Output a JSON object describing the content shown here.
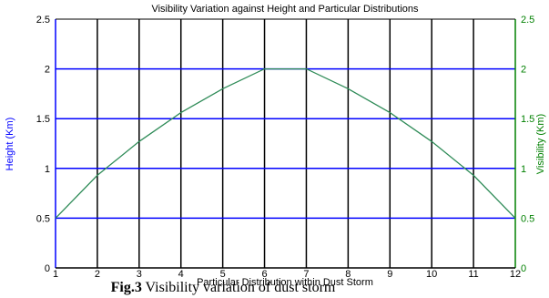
{
  "chart_data": {
    "type": "line",
    "title": "Visibility Variation against Height and Particular Distributions",
    "xlabel": "Particular Distribution within Dust Storm",
    "ylabel_left": "Height (Km)",
    "ylabel_right": "Visibility (Km)",
    "xlim": [
      1,
      12
    ],
    "ylim": [
      0,
      2.5
    ],
    "x_ticks": [
      "1",
      "2",
      "3",
      "4",
      "5",
      "6",
      "7",
      "8",
      "9",
      "10",
      "11",
      "12"
    ],
    "y_ticks": [
      "0",
      "0.5",
      "1",
      "1.5",
      "2",
      "2.5"
    ],
    "grid": true,
    "series": [
      {
        "x": [
          1,
          2,
          3,
          4,
          5,
          6,
          7,
          8,
          9,
          10,
          11,
          12
        ],
        "values": [
          0.5,
          0.93,
          1.27,
          1.56,
          1.8,
          2.0,
          2.0,
          1.8,
          1.56,
          1.27,
          0.93,
          0.5
        ],
        "color": "#2e8b57"
      }
    ],
    "colors": {
      "left_axis": "#0000ff",
      "right_axis": "#008000",
      "vertical_grid": "#000000",
      "horizontal_grid": "#0000ff"
    }
  },
  "caption": {
    "bold": "Fig.3",
    "text": " Visibility variation of dust storm"
  }
}
